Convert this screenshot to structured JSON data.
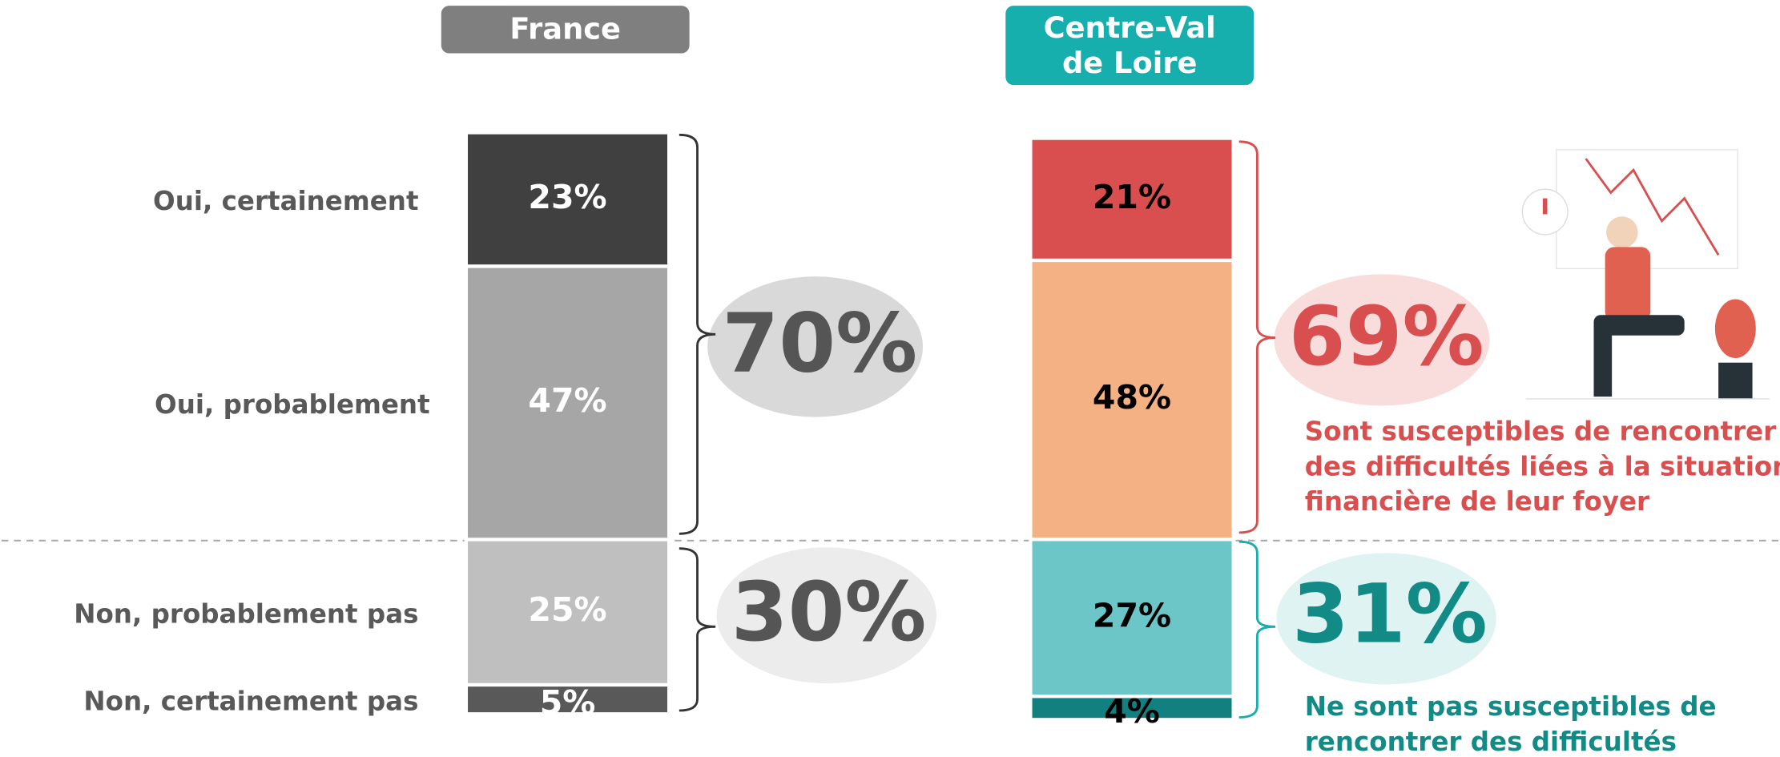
{
  "chart_data": {
    "type": "stacked_bar",
    "categories": [
      "France",
      "Centre-Val de Loire"
    ],
    "category_colors": [
      "#7f7f7f",
      "#17aeae"
    ],
    "series": [
      {
        "name": "Oui, certainement",
        "colors": [
          "#404040",
          "#d94f4f"
        ],
        "values": [
          23,
          21
        ],
        "value_labels": [
          "23%",
          "21%"
        ]
      },
      {
        "name": "Oui, probablement",
        "colors": [
          "#a6a6a6",
          "#f4b183"
        ],
        "values": [
          47,
          48
        ],
        "value_labels": [
          "47%",
          "48%"
        ]
      },
      {
        "name": "Non, probablement pas",
        "colors": [
          "#bfbfbf",
          "#6cc6c8"
        ],
        "values": [
          25,
          27
        ],
        "value_labels": [
          "25%",
          "27%"
        ]
      },
      {
        "name": "Non, certainement pas",
        "colors": [
          "#595959",
          "#128080"
        ],
        "values": [
          5,
          4
        ],
        "value_labels": [
          "5%",
          "4%"
        ]
      }
    ],
    "label_colors": [
      "#ffffff",
      "#000000"
    ],
    "totals": [
      {
        "values": [
          70,
          69
        ],
        "value_labels": [
          "70%",
          "69%"
        ],
        "colors": [
          "#555555",
          "#d94f4f"
        ]
      },
      {
        "values": [
          30,
          31
        ],
        "value_labels": [
          "30%",
          "31%"
        ],
        "colors": [
          "#555555",
          "#128a86"
        ]
      }
    ],
    "annotations": [
      {
        "lines": [
          "Sont susceptibles de rencontrer",
          "des difficultés liées à la situation",
          "financière de leur foyer"
        ],
        "color": "#d94f4f"
      },
      {
        "lines": [
          "Ne sont pas susceptibles de",
          "rencontrer des difficultés"
        ],
        "color": "#128a86"
      }
    ]
  }
}
